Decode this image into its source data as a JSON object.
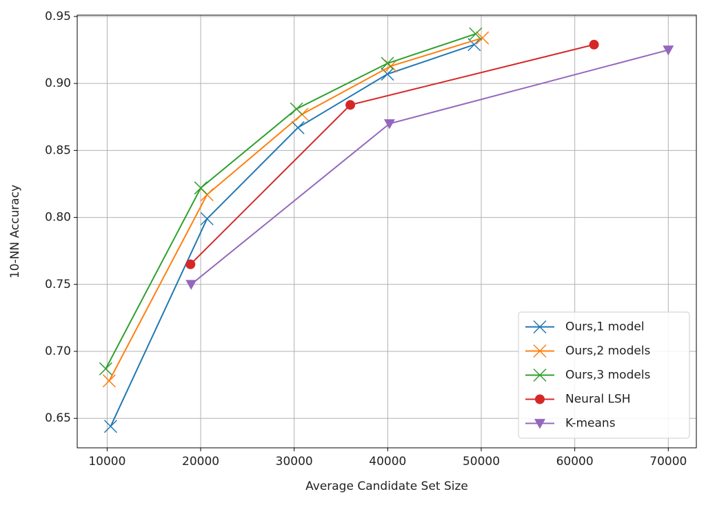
{
  "chart_data": {
    "type": "line",
    "xlabel": "Average Candidate Set Size",
    "ylabel": "10-NN Accuracy",
    "xlim": [
      6800,
      73000
    ],
    "ylim": [
      0.628,
      0.951
    ],
    "xticks": [
      10000,
      20000,
      30000,
      40000,
      50000,
      60000,
      70000
    ],
    "yticks": [
      0.65,
      {
        "value": 0.7,
        "label": "0.70"
      },
      0.75,
      {
        "value": 0.8,
        "label": "0.80"
      },
      0.85,
      {
        "value": 0.9,
        "label": "0.90"
      },
      0.95
    ],
    "grid": true,
    "legend": "lower right",
    "series": [
      {
        "name": "Ours,1 model",
        "color": "#1f77b4",
        "marker": "x",
        "x": [
          10370,
          20680,
          30400,
          39970,
          49250
        ],
        "values": [
          0.644,
          0.799,
          0.867,
          0.907,
          0.929
        ]
      },
      {
        "name": "Ours,2 models",
        "color": "#ff7f0e",
        "marker": "x",
        "x": [
          10220,
          20680,
          30840,
          40340,
          50130
        ],
        "values": [
          0.678,
          0.817,
          0.877,
          0.913,
          0.934
        ]
      },
      {
        "name": "Ours,3 models",
        "color": "#2ca02c",
        "marker": "x",
        "x": [
          9850,
          20010,
          30250,
          39970,
          49400
        ],
        "values": [
          0.687,
          0.822,
          0.881,
          0.915,
          0.937
        ]
      },
      {
        "name": "Neural LSH",
        "color": "#d62728",
        "marker": "circle",
        "x": [
          18910,
          36000,
          62060
        ],
        "values": [
          0.765,
          0.884,
          0.929
        ]
      },
      {
        "name": "K-means",
        "color": "#9467bd",
        "marker": "triangle-down",
        "x": [
          18980,
          40190,
          70000
        ],
        "values": [
          0.75,
          0.87,
          0.925
        ]
      }
    ]
  }
}
